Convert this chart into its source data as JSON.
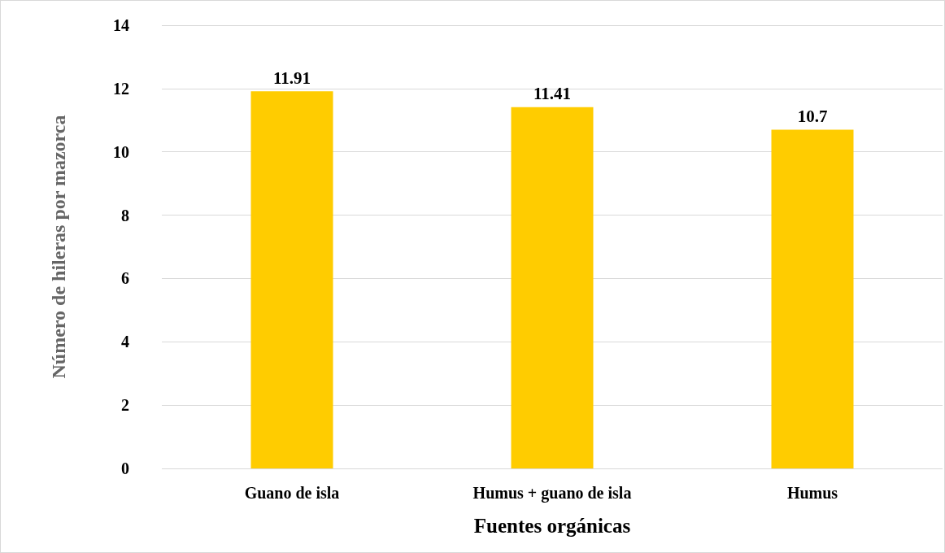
{
  "chart_data": {
    "type": "bar",
    "xlabel": "Fuentes orgánicas",
    "ylabel": "Número de hileras por mazorca",
    "categories": [
      "Guano de isla",
      "Humus + guano de isla",
      "Humus"
    ],
    "values": [
      11.91,
      11.41,
      10.7
    ],
    "color": "#ffcc00",
    "ylim": [
      0,
      14
    ],
    "yticks": [
      0,
      2,
      4,
      6,
      8,
      10,
      12,
      14
    ],
    "grid": "y",
    "data_labels": true
  }
}
